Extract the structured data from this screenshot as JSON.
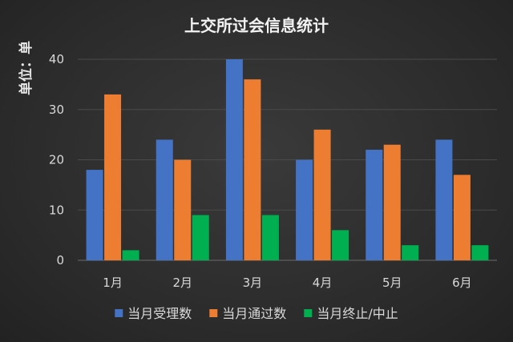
{
  "chart_data": {
    "type": "bar",
    "title": "上交所过会信息统计",
    "xlabel": "",
    "ylabel": "单位：单",
    "categories": [
      "1月",
      "2月",
      "3月",
      "4月",
      "5月",
      "6月"
    ],
    "series": [
      {
        "name": "当月受理数",
        "color": "#4472c4",
        "values": [
          18,
          24,
          40,
          20,
          22,
          24
        ]
      },
      {
        "name": "当月通过数",
        "color": "#ed7d31",
        "values": [
          33,
          20,
          36,
          26,
          23,
          17
        ]
      },
      {
        "name": "当月终止/中止",
        "color": "#00b050",
        "values": [
          2,
          9,
          9,
          6,
          3,
          3
        ]
      }
    ],
    "ylim": [
      0,
      40
    ],
    "yticks": [
      0,
      10,
      20,
      30,
      40
    ],
    "grid": true,
    "legend": "bottom"
  }
}
